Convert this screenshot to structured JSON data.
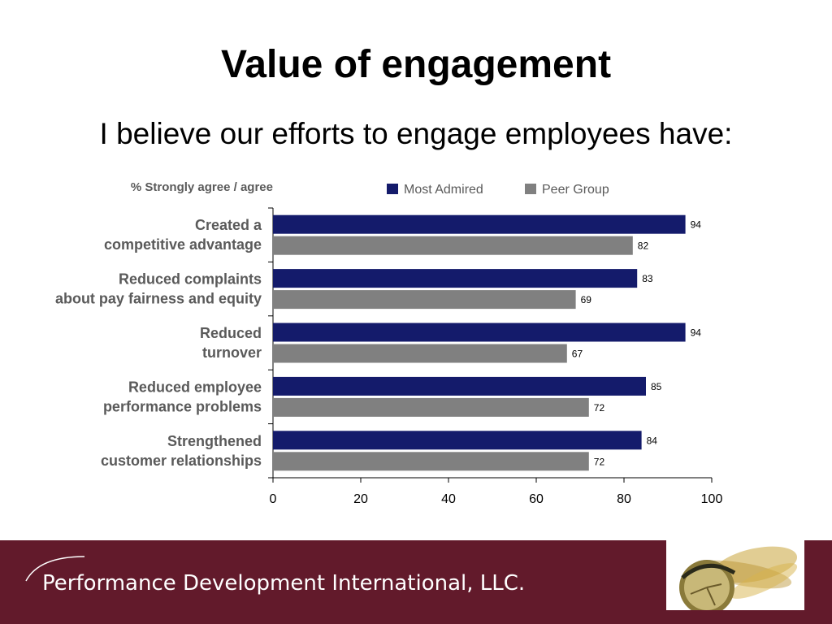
{
  "slide": {
    "title": "Value of engagement",
    "subtitle": "I believe our efforts to engage employees have:"
  },
  "footer": {
    "company": "Performance Development International, LLC."
  },
  "colors": {
    "most_admired": "#141b6b",
    "peer_group": "#808080",
    "footer_bg": "#621a2b",
    "label_text": "#5a5a5a"
  },
  "chart_data": {
    "type": "bar",
    "orientation": "horizontal",
    "axis_caption": "% Strongly agree / agree",
    "categories": [
      [
        "Created a",
        "competitive advantage"
      ],
      [
        "Reduced complaints",
        "about pay fairness and equity"
      ],
      [
        "Reduced",
        "turnover"
      ],
      [
        "Reduced employee",
        "performance problems"
      ],
      [
        "Strengthened",
        "customer relationships"
      ]
    ],
    "series": [
      {
        "name": "Most Admired",
        "values": [
          94,
          83,
          94,
          85,
          84
        ]
      },
      {
        "name": "Peer Group",
        "values": [
          82,
          69,
          67,
          72,
          72
        ]
      }
    ],
    "xlim": [
      0,
      100
    ],
    "xticks": [
      0,
      20,
      40,
      60,
      80,
      100
    ],
    "legend": "top",
    "grid": false
  }
}
